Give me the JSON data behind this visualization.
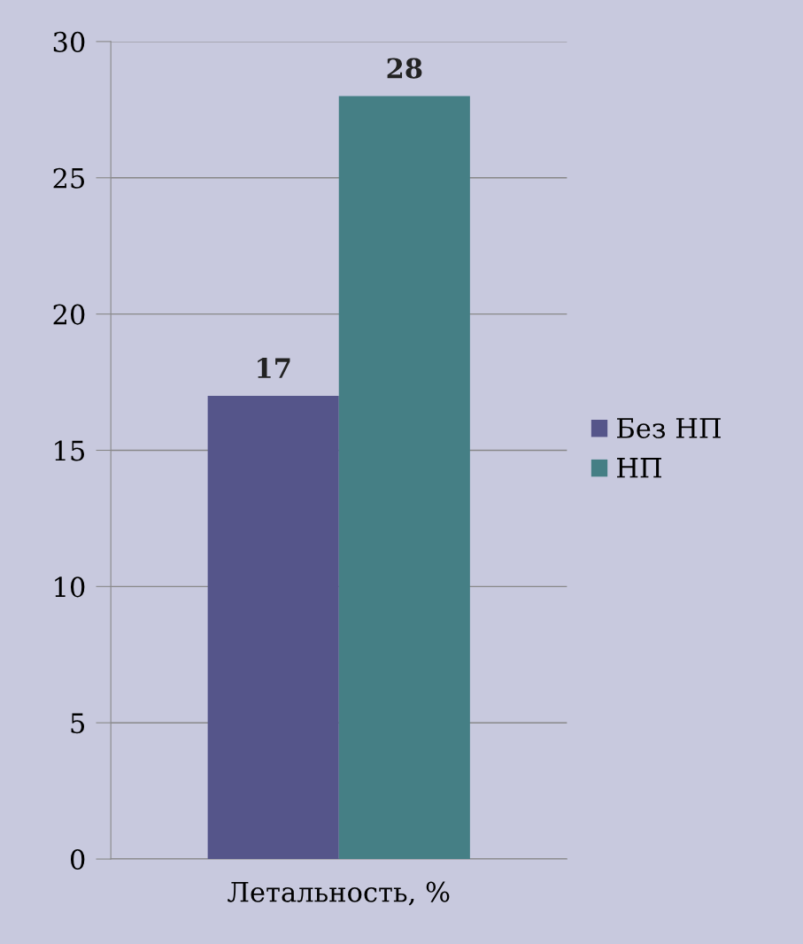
{
  "chart_data": {
    "type": "bar",
    "categories": [
      "Летальность, %"
    ],
    "series": [
      {
        "name": "Без НП",
        "color": "#55558a",
        "values": [
          17
        ]
      },
      {
        "name": "НП",
        "color": "#457f85",
        "values": [
          28
        ]
      }
    ],
    "ylim": [
      0,
      30
    ],
    "yticks": [
      0,
      5,
      10,
      15,
      20,
      25,
      30
    ],
    "grid": "y",
    "legend": "right",
    "data_labels": true
  }
}
